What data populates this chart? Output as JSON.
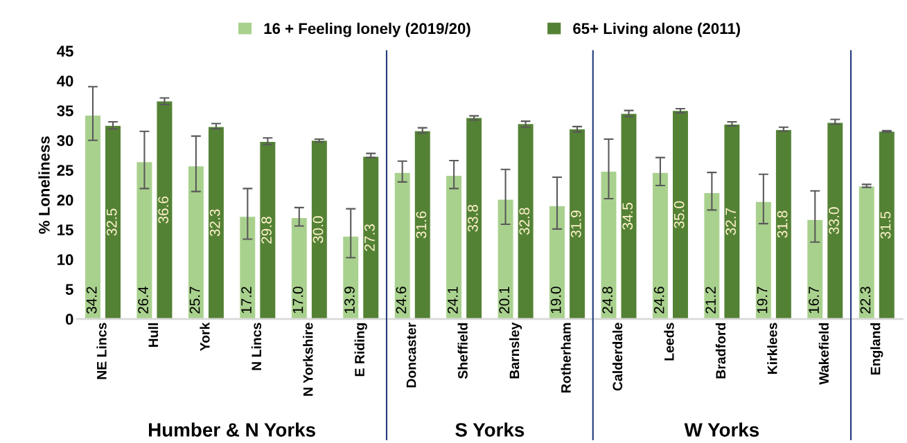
{
  "chart_data": {
    "type": "bar",
    "ylabel": "% Loneliness",
    "categories": [
      "NE Lincs",
      "Hull",
      "York",
      "N Lincs",
      "N Yorkshire",
      "E Riding",
      "Doncaster",
      "Sheffield",
      "Barnsley",
      "Rotherham",
      "Calderdale",
      "Leeds",
      "Bradford",
      "Kirklees",
      "Wakefield",
      "England"
    ],
    "series": [
      {
        "name": "16 + Feeling lonely (2019/20)",
        "color": "#a9d18e",
        "values": [
          34.2,
          26.4,
          25.7,
          17.2,
          17.0,
          13.9,
          24.6,
          24.1,
          20.1,
          19.0,
          24.8,
          24.6,
          21.2,
          19.7,
          16.7,
          22.3
        ],
        "value_labels": [
          "34.2",
          "26.4",
          "25.7",
          "17.2",
          "17.0",
          "13.9",
          "24.6",
          "24.1",
          "20.1",
          "19.0",
          "24.8",
          "24.6",
          "21.2",
          "19.7",
          "16.7",
          "22.3"
        ],
        "errors": [
          [
            30.0,
            39.0
          ],
          [
            21.9,
            31.5
          ],
          [
            21.4,
            30.7
          ],
          [
            13.4,
            21.9
          ],
          [
            15.6,
            18.7
          ],
          [
            10.3,
            18.5
          ],
          [
            23.0,
            26.5
          ],
          [
            21.9,
            26.6
          ],
          [
            15.9,
            25.1
          ],
          [
            15.1,
            23.8
          ],
          [
            20.2,
            30.2
          ],
          [
            22.4,
            27.1
          ],
          [
            18.3,
            24.6
          ],
          [
            16.0,
            24.3
          ],
          [
            12.9,
            21.5
          ],
          [
            22.1,
            22.6
          ]
        ]
      },
      {
        "name": "65+ Living alone (2011)",
        "color": "#548235",
        "values": [
          32.5,
          36.6,
          32.3,
          29.8,
          30.0,
          27.3,
          31.6,
          33.8,
          32.8,
          31.9,
          34.5,
          35.0,
          32.7,
          31.8,
          33.0,
          31.5
        ],
        "value_labels": [
          "32.5",
          "36.6",
          "32.3",
          "29.8",
          "30.0",
          "27.3",
          "31.6",
          "33.8",
          "32.8",
          "31.9",
          "34.5",
          "35.0",
          "32.7",
          "31.8",
          "33.0",
          "31.5"
        ],
        "errors": [
          [
            31.9,
            33.1
          ],
          [
            36.0,
            37.1
          ],
          [
            31.9,
            32.8
          ],
          [
            29.3,
            30.4
          ],
          [
            29.7,
            30.2
          ],
          [
            27.1,
            27.8
          ],
          [
            31.2,
            32.1
          ],
          [
            33.4,
            34.1
          ],
          [
            32.2,
            33.2
          ],
          [
            31.4,
            32.3
          ],
          [
            34.0,
            35.0
          ],
          [
            34.6,
            35.3
          ],
          [
            32.4,
            33.1
          ],
          [
            31.5,
            32.2
          ],
          [
            32.7,
            33.5
          ],
          [
            31.4,
            31.6
          ]
        ]
      }
    ],
    "ylim": [
      0,
      45
    ],
    "yticks": [
      0,
      5,
      10,
      15,
      20,
      25,
      30,
      35,
      40,
      45
    ],
    "annotations": [
      "Humber & N Yorks",
      "S Yorks",
      "W Yorks"
    ],
    "grid": false,
    "legend": "top"
  }
}
